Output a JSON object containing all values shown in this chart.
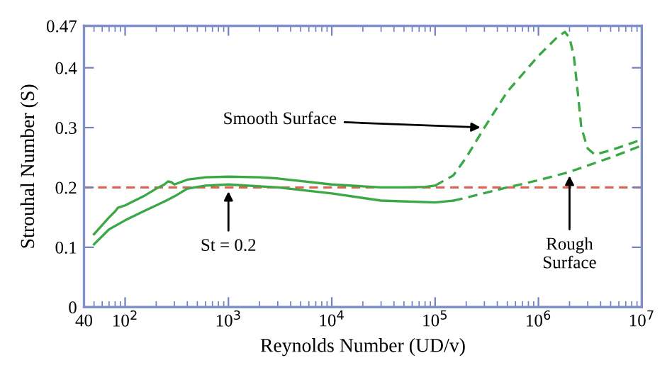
{
  "chart_data": {
    "type": "line",
    "xlabel": "Reynolds Number (UD/v)",
    "ylabel": "Strouhal Number (S)",
    "log": "x",
    "grid": false,
    "legend": false,
    "xlim": [
      40,
      10000000
    ],
    "ylim": [
      0,
      0.47
    ],
    "xticks": [
      40,
      {
        "value": 100,
        "label": "10$^{2}$"
      },
      {
        "value": 1000,
        "label": "10$^{3}$"
      },
      {
        "value": 10000,
        "label": "10$^{4}$"
      },
      {
        "value": 100000,
        "label": "10$^{5}$"
      },
      {
        "value": 1000000,
        "label": "10$^{6}$"
      },
      {
        "value": 10000000,
        "label": "10$^{7}$"
      }
    ],
    "yticks": [
      0,
      0.1,
      0.2,
      0.3,
      0.4,
      0.47
    ],
    "series": [
      {
        "color": "#3aa845",
        "line_style": "solid",
        "x": [
          50,
          70,
          80,
          85,
          100,
          150,
          200,
          240,
          260,
          280,
          300,
          400,
          600,
          1000,
          2000,
          3000,
          10000,
          30000,
          50000,
          80000,
          100000
        ],
        "values": [
          0.122,
          0.15,
          0.16,
          0.166,
          0.17,
          0.185,
          0.198,
          0.205,
          0.21,
          0.209,
          0.205,
          0.213,
          0.217,
          0.218,
          0.217,
          0.215,
          0.205,
          0.2,
          0.2,
          0.201,
          0.203
        ]
      },
      {
        "color": "#3aa845",
        "line_style": "dashed",
        "x": [
          100000,
          150000,
          200000,
          300000,
          500000,
          1000000,
          1500000,
          1800000,
          2000000,
          2200000,
          2400000,
          2600000,
          3000000,
          3500000,
          5000000,
          10000000
        ],
        "values": [
          0.203,
          0.22,
          0.25,
          0.3,
          0.36,
          0.42,
          0.45,
          0.46,
          0.45,
          0.42,
          0.36,
          0.3,
          0.265,
          0.255,
          0.262,
          0.28
        ]
      },
      {
        "color": "#3aa845",
        "line_style": "solid",
        "x": [
          50,
          70,
          100,
          150,
          200,
          250,
          300,
          400,
          600,
          1000,
          3000,
          10000,
          30000,
          100000,
          150000
        ],
        "values": [
          0.105,
          0.13,
          0.145,
          0.16,
          0.17,
          0.178,
          0.185,
          0.198,
          0.203,
          0.205,
          0.2,
          0.19,
          0.178,
          0.175,
          0.178
        ]
      },
      {
        "color": "#3aa845",
        "line_style": "dashed",
        "x": [
          150000,
          200000,
          500000,
          1000000,
          2000000,
          5000000,
          10000000
        ],
        "values": [
          0.178,
          0.183,
          0.2,
          0.212,
          0.226,
          0.25,
          0.27
        ]
      }
    ],
    "ref_lines": [
      {
        "axis": "y",
        "value": 0.2,
        "color": "#e06050",
        "line_style": "dashed"
      }
    ],
    "annotations": [
      {
        "text": "Smooth Surface",
        "x": 300000,
        "y": 0.3
      },
      {
        "text": "Rough\nSurface",
        "x": 2000000,
        "y": 0.226
      },
      {
        "text": "St = 0.2",
        "x": 1000,
        "y": 0.2
      }
    ]
  }
}
